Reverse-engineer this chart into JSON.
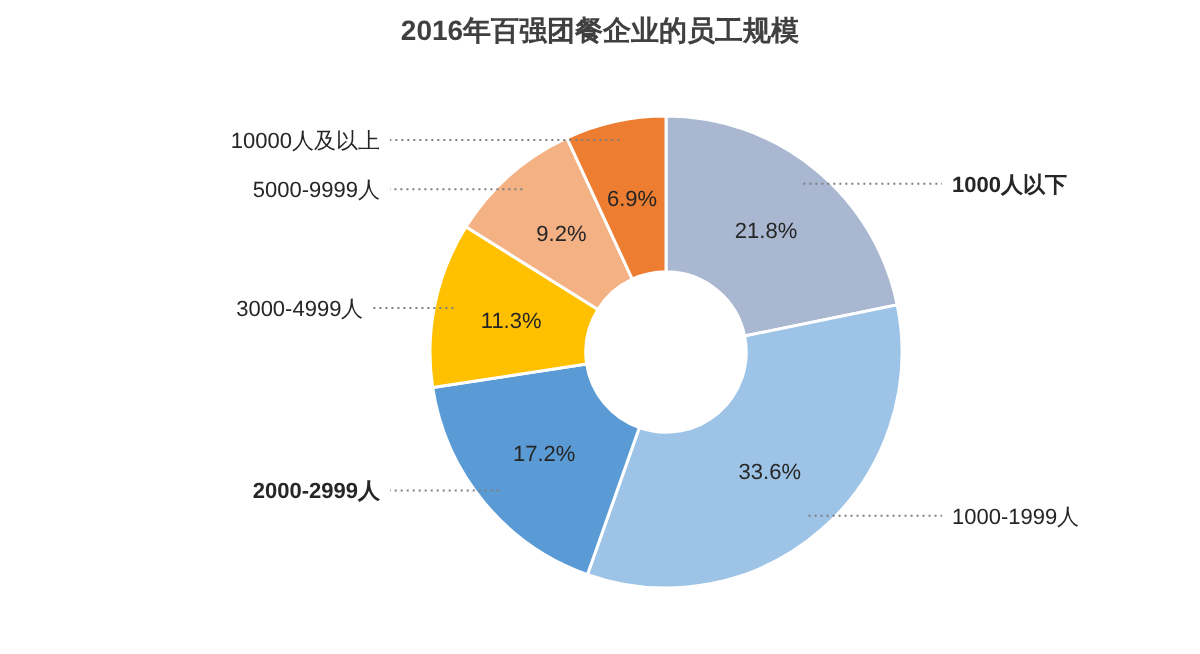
{
  "chart_data": {
    "type": "donut",
    "title": "2016年百强团餐企业的员工规模",
    "categories": [
      "1000人以下",
      "1000-1999人",
      "2000-2999人",
      "3000-4999人",
      "5000-9999人",
      "10000人及以上"
    ],
    "values": [
      21.8,
      33.6,
      17.2,
      11.3,
      9.2,
      6.9
    ],
    "colors": [
      "#a9b7d0",
      "#9dc3e6",
      "#5b9bd5",
      "#ffc000",
      "#f4b183",
      "#ed7d31"
    ],
    "value_labels": [
      "21.8%",
      "33.6%",
      "17.2%",
      "11.3%",
      "9.2%",
      "6.9%"
    ]
  }
}
